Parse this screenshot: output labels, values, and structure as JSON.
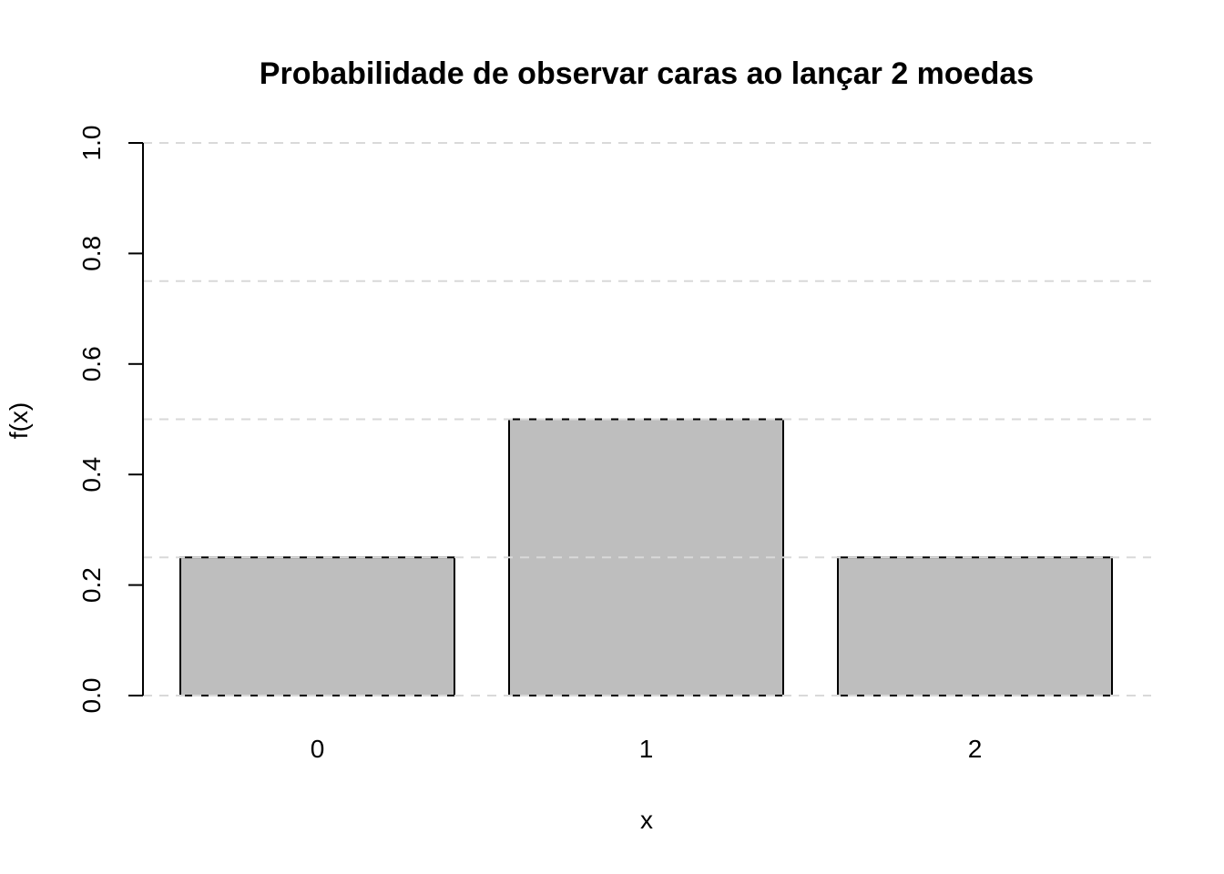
{
  "chart_data": {
    "type": "bar",
    "title": "Probabilidade de observar caras ao lançar 2 moedas",
    "xlabel": "x",
    "ylabel": "f(x)",
    "categories": [
      "0",
      "1",
      "2"
    ],
    "values": [
      0.25,
      0.5,
      0.25
    ],
    "ylim": [
      0,
      1
    ],
    "yticks": [
      "0.0",
      "0.2",
      "0.4",
      "0.6",
      "0.8",
      "1.0"
    ],
    "gridlines": [
      0,
      0.25,
      0.5,
      0.75,
      1.0
    ],
    "grid": true,
    "bar_color": "#bebebe",
    "grid_color": "#d9d9d9"
  }
}
